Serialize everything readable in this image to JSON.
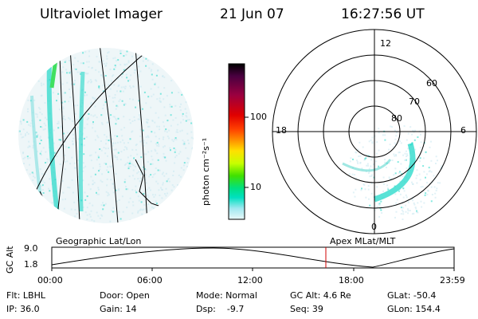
{
  "header": {
    "title": "Ultraviolet Imager",
    "date": "21 Jun 07",
    "time": "16:27:56 UT"
  },
  "colorbar": {
    "unit_label": "photon cm⁻²s⁻¹",
    "ticks": [
      "100",
      "10"
    ]
  },
  "polar": {
    "mlt_labels": {
      "top": "12",
      "left": "18",
      "right": "6",
      "bottom": "0"
    },
    "lat_labels": [
      "60",
      "70",
      "80"
    ]
  },
  "timeline": {
    "left_title": "Geographic Lat/Lon",
    "right_title": "Apex MLat/MLT",
    "axis_label": "GC Alt",
    "y_ticks": [
      "9.0",
      "1.8"
    ],
    "x_ticks": [
      "00:00",
      "06:00",
      "12:00",
      "18:00",
      "23:59"
    ]
  },
  "status": {
    "row1": [
      "Flt: LBHL",
      "Door: Open",
      "Mode: Normal",
      "GC Alt: 4.6 Re",
      "GLat: -50.4"
    ],
    "row2": [
      "IP: 36.0",
      "Gain: 14",
      "Dsp:    -9.7",
      "Seq: 39",
      "GLon: 154.4"
    ]
  },
  "colors": {
    "colorbar": [
      "#000000",
      "#4a0040",
      "#9a0040",
      "#e00000",
      "#ff4000",
      "#ff9a00",
      "#ffe000",
      "#c8ff00",
      "#40e000",
      "#00e080",
      "#00e0c0",
      "#a0e8f0",
      "#e8f8f8"
    ],
    "cursor": "#d00000",
    "aurora_dense": "#20d8c8",
    "aurora_faint": "#c8e8f0"
  }
}
